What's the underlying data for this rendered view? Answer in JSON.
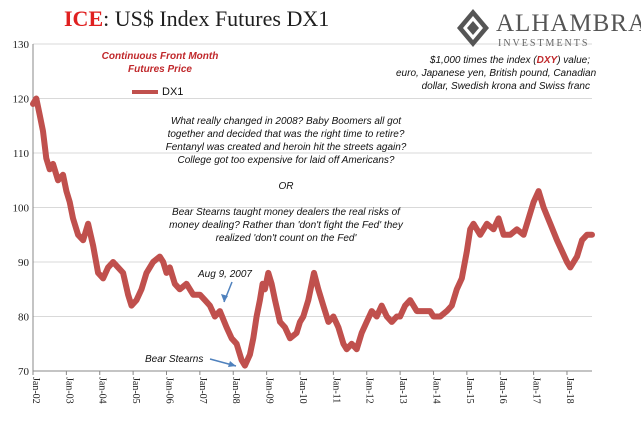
{
  "title": {
    "prefix": "ICE",
    "rest": ": US$ Index Futures DX1"
  },
  "logo": {
    "name": "ALHAMBRA",
    "sub": "INVESTMENTS"
  },
  "series_caption": {
    "line1": "Continuous Front Month",
    "line2": "Futures Price"
  },
  "description": {
    "line1_a": "$1,000 times the index (",
    "line1_b": "DXY",
    "line1_c": ") value;",
    "line2": "euro, Japanese yen, British pound, Canadian",
    "line3": "dollar, Swedish krona and Swiss franc"
  },
  "commentary": [
    "What really changed in 2008? Baby Boomers all got",
    "together and decided that was the right time to retire?",
    "Fentanyl was created and heroin hit the streets again?",
    "College got too expensive for laid off Americans?",
    "",
    "OR",
    "",
    "Bear Stearns taught money dealers the real risks of",
    "money dealing? Rather than 'don't fight the Fed' they",
    "realized 'don't count on the Fed'"
  ],
  "annotations": {
    "aug2007": "Aug 9, 2007",
    "bear": "Bear Stearns"
  },
  "colors": {
    "series": "#c0504d",
    "title_accent": "#e02020",
    "arrow": "#4f81bd"
  },
  "chart_data": {
    "type": "line",
    "legend": "top-left",
    "grid": "horizontal",
    "ylim": [
      70,
      130
    ],
    "yticks": [
      70,
      80,
      90,
      100,
      110,
      120,
      130
    ],
    "xlim": [
      2002.0,
      2018.75
    ],
    "xticks": [
      "Jan-02",
      "Jan-03",
      "Jan-04",
      "Jan-05",
      "Jan-06",
      "Jan-07",
      "Jan-08",
      "Jan-09",
      "Jan-10",
      "Jan-11",
      "Jan-12",
      "Jan-13",
      "Jan-14",
      "Jan-15",
      "Jan-16",
      "Jan-17",
      "Jan-18"
    ],
    "series": [
      {
        "name": "DX1",
        "x": [
          2002.0,
          2002.1,
          2002.2,
          2002.3,
          2002.4,
          2002.5,
          2002.6,
          2002.75,
          2002.9,
          2003.0,
          2003.1,
          2003.2,
          2003.35,
          2003.5,
          2003.65,
          2003.8,
          2003.95,
          2004.1,
          2004.25,
          2004.4,
          2004.55,
          2004.7,
          2004.85,
          2004.95,
          2005.1,
          2005.25,
          2005.4,
          2005.6,
          2005.8,
          2005.9,
          2006.0,
          2006.1,
          2006.25,
          2006.4,
          2006.6,
          2006.8,
          2007.0,
          2007.15,
          2007.3,
          2007.45,
          2007.6,
          2007.8,
          2007.95,
          2008.1,
          2008.25,
          2008.35,
          2008.5,
          2008.6,
          2008.7,
          2008.8,
          2008.88,
          2008.95,
          2009.05,
          2009.15,
          2009.25,
          2009.4,
          2009.55,
          2009.7,
          2009.9,
          2010.0,
          2010.1,
          2010.25,
          2010.42,
          2010.55,
          2010.7,
          2010.85,
          2011.0,
          2011.15,
          2011.3,
          2011.4,
          2011.55,
          2011.7,
          2011.85,
          2012.0,
          2012.15,
          2012.3,
          2012.45,
          2012.6,
          2012.75,
          2012.9,
          2013.0,
          2013.15,
          2013.3,
          2013.5,
          2013.7,
          2013.9,
          2014.0,
          2014.2,
          2014.4,
          2014.55,
          2014.7,
          2014.85,
          2015.0,
          2015.1,
          2015.2,
          2015.4,
          2015.6,
          2015.8,
          2015.95,
          2016.1,
          2016.3,
          2016.5,
          2016.7,
          2016.85,
          2017.0,
          2017.15,
          2017.3,
          2017.5,
          2017.7,
          2017.85,
          2018.0,
          2018.1,
          2018.3,
          2018.45,
          2018.6,
          2018.75
        ],
        "values": [
          119,
          120,
          117,
          114,
          109,
          107,
          108,
          105,
          106,
          103,
          101,
          98,
          95,
          94,
          97,
          93,
          88,
          87,
          89,
          90,
          89,
          88,
          84,
          82,
          83,
          85,
          88,
          90,
          91,
          90,
          88,
          89,
          86,
          85,
          86,
          84,
          84,
          83,
          82,
          80,
          81,
          78,
          76,
          75,
          72,
          71,
          73,
          76,
          80,
          83,
          86,
          85,
          88,
          86,
          83,
          79,
          78,
          76,
          77,
          79,
          80,
          83,
          88,
          85,
          82,
          79,
          80,
          78,
          75,
          74,
          75,
          74,
          77,
          79,
          81,
          80,
          82,
          80,
          79,
          80,
          80,
          82,
          83,
          81,
          81,
          81,
          80,
          80,
          81,
          82,
          85,
          87,
          92,
          96,
          97,
          95,
          97,
          96,
          98,
          95,
          95,
          96,
          95,
          98,
          101,
          103,
          100,
          97,
          94,
          92,
          90,
          89,
          91,
          94,
          95,
          95
        ]
      }
    ]
  }
}
